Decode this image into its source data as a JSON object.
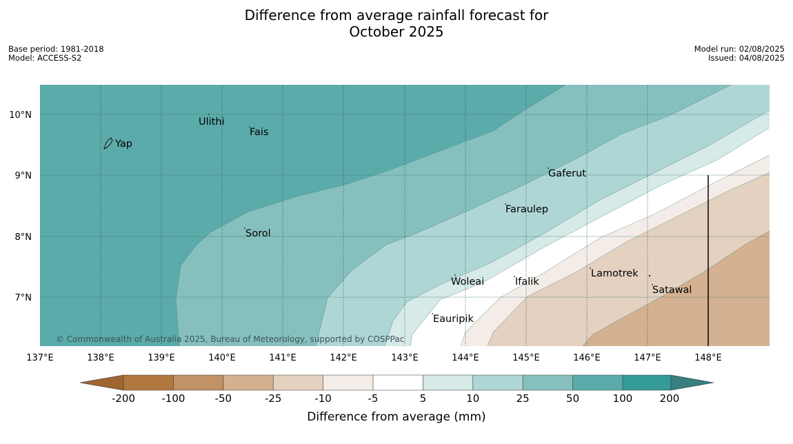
{
  "title_line1": "Difference from average rainfall forecast for",
  "title_line2": "October 2025",
  "base_period": "Base period: 1981-2018",
  "model": "Model: ACCESS-S2",
  "model_run": "Model run: 02/08/2025",
  "issued": "Issued: 04/08/2025",
  "copyright": "© Commonwealth of Australia 2025, Bureau of Meteorology, supported by COSPPac",
  "lat_labels": [
    "10°N",
    "9°N",
    "8°N",
    "7°N"
  ],
  "lon_labels": [
    "137°E",
    "138°E",
    "139°E",
    "140°E",
    "141°E",
    "142°E",
    "143°E",
    "144°E",
    "145°E",
    "146°E",
    "147°E",
    "148°E"
  ],
  "places": {
    "yap": "Yap",
    "ulithi": "Ulithi",
    "fais": "Fais",
    "gaferut": "Gaferut",
    "faraulep": "Faraulep",
    "sorol": "Sorol",
    "woleai": "Woleai",
    "ifalik": "Ifalik",
    "lamotrek": "Lamotrek",
    "satawal": "Satawal",
    "eauripik": "Eauripik"
  },
  "colorbar": {
    "title": "Difference from average (mm)",
    "ticks": [
      "-200",
      "-100",
      "-50",
      "-25",
      "-10",
      "-5",
      "5",
      "10",
      "25",
      "50",
      "100",
      "200"
    ],
    "colors": {
      "below_min": "#9e6630",
      "b1": "#b0773f",
      "b2": "#c19167",
      "b3": "#d4b190",
      "b4": "#e4d1c0",
      "b5": "#f4ede7",
      "b6": "#ffffff",
      "b7": "#d6eae8",
      "b8": "#aed6d5",
      "b9": "#86c0be",
      "b10": "#5cabab",
      "b11": "#359b99",
      "above_max": "#37807f"
    }
  }
}
